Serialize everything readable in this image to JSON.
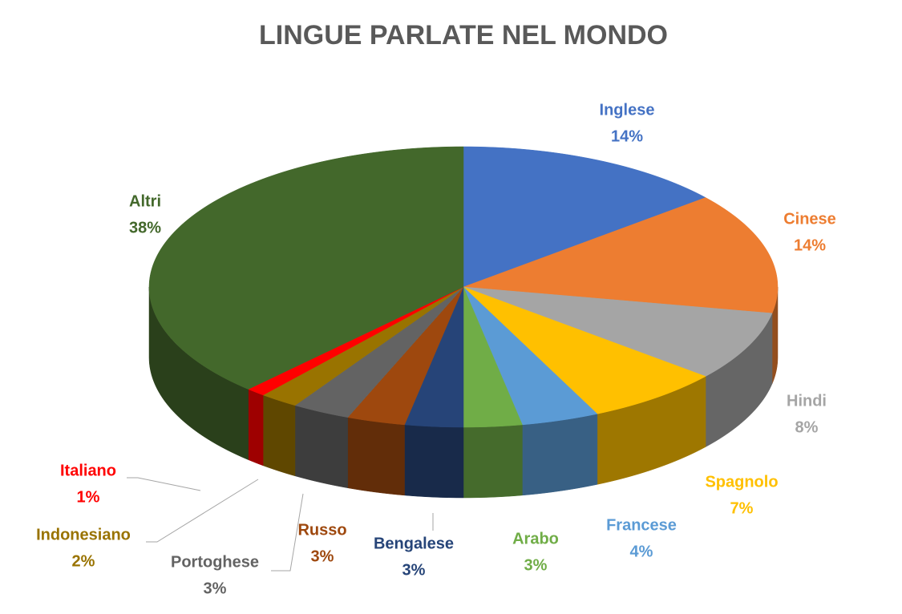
{
  "chart_data": {
    "type": "pie3d",
    "title": "LINGUE PARLATE NEL MONDO",
    "categories": [
      "Inglese",
      "Cinese",
      "Hindi",
      "Spagnolo",
      "Francese",
      "Arabo",
      "Bengalese",
      "Russo",
      "Portoghese",
      "Indonesiano",
      "Italiano",
      "Altri"
    ],
    "values": [
      14,
      14,
      8,
      7,
      4,
      3,
      3,
      3,
      3,
      2,
      1,
      38
    ],
    "value_labels": [
      "14%",
      "14%",
      "8%",
      "7%",
      "4%",
      "3%",
      "3%",
      "3%",
      "3%",
      "2%",
      "1%",
      "38%"
    ],
    "colors": [
      "#4472c4",
      "#ed7d31",
      "#a5a5a5",
      "#ffc000",
      "#5b9bd5",
      "#70ad47",
      "#264478",
      "#9e480e",
      "#636363",
      "#997300",
      "#ff0000",
      "#43682b"
    ]
  }
}
